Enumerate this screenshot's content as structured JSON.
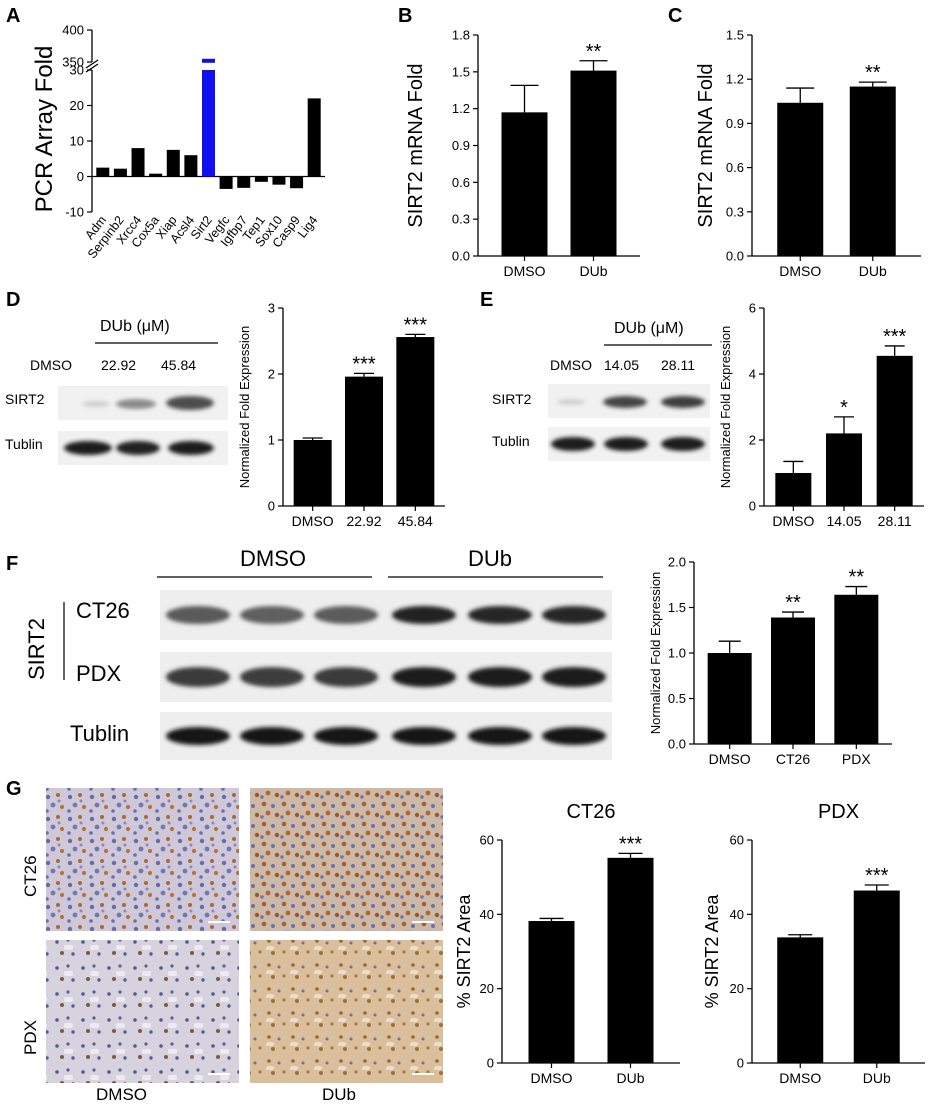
{
  "panels": {
    "a": "A",
    "b": "B",
    "c": "C",
    "d": "D",
    "e": "E",
    "f": "F",
    "g": "G"
  },
  "chart_data": [
    {
      "id": "A",
      "type": "bar",
      "ylabel": "PCR Array Fold",
      "categories": [
        "Adm",
        "Serpinb2",
        "Xrcc4",
        "Cox5a",
        "Xiap",
        "Acsl4",
        "Sirt2",
        "Vegfc",
        "Igfbp7",
        "Tep1",
        "Sox10",
        "Casp9",
        "Lig4"
      ],
      "values": [
        2.5,
        2.2,
        8.0,
        0.8,
        7.5,
        6.0,
        355,
        -3.5,
        -3.2,
        -1.5,
        -2.3,
        -3.3,
        22
      ],
      "highlight": "Sirt2",
      "highlight_color": "#1010ee",
      "axis_break": [
        30,
        350
      ],
      "yticks": [
        -10,
        0,
        10,
        20,
        30,
        350,
        400
      ],
      "ylim": [
        -10,
        400
      ]
    },
    {
      "id": "B",
      "type": "bar",
      "ylabel": "SIRT2 mRNA Fold",
      "categories": [
        "DMSO",
        "DUb"
      ],
      "values": [
        1.17,
        1.51
      ],
      "errors": [
        0.22,
        0.08
      ],
      "annotations": [
        "",
        "**"
      ],
      "yticks": [
        "0.0",
        "0.3",
        "0.6",
        "0.9",
        "1.2",
        "1.5",
        "1.8"
      ],
      "ylim": [
        0,
        1.8
      ]
    },
    {
      "id": "C",
      "type": "bar",
      "ylabel": "SIRT2 mRNA Fold",
      "categories": [
        "DMSO",
        "DUb"
      ],
      "values": [
        1.04,
        1.15
      ],
      "errors": [
        0.1,
        0.03
      ],
      "annotations": [
        "",
        "**"
      ],
      "yticks": [
        "0.0",
        "0.3",
        "0.6",
        "0.9",
        "1.2",
        "1.5"
      ],
      "ylim": [
        0,
        1.5
      ]
    },
    {
      "id": "D",
      "type": "bar",
      "ylabel": "Normalized Fold Expression",
      "categories": [
        "DMSO",
        "22.92",
        "45.84"
      ],
      "values": [
        1.0,
        1.96,
        2.56
      ],
      "errors": [
        0.03,
        0.05,
        0.04
      ],
      "annotations": [
        "",
        "***",
        "***"
      ],
      "yticks": [
        "0",
        "1",
        "2",
        "3"
      ],
      "ylim": [
        0,
        3
      ]
    },
    {
      "id": "E",
      "type": "bar",
      "ylabel": "Normalized Fold Expression",
      "categories": [
        "DMSO",
        "14.05",
        "28.11"
      ],
      "values": [
        1.0,
        2.2,
        4.55
      ],
      "errors": [
        0.35,
        0.5,
        0.3
      ],
      "annotations": [
        "",
        "*",
        "***"
      ],
      "yticks": [
        "0",
        "2",
        "4",
        "6"
      ],
      "ylim": [
        0,
        6
      ]
    },
    {
      "id": "F",
      "type": "bar",
      "ylabel": "Normalized Fold Expression",
      "categories": [
        "DMSO",
        "CT26",
        "PDX"
      ],
      "values": [
        1.0,
        1.39,
        1.64
      ],
      "errors": [
        0.13,
        0.06,
        0.09
      ],
      "annotations": [
        "",
        "**",
        "**"
      ],
      "yticks": [
        "0.0",
        "0.5",
        "1.0",
        "1.5",
        "2.0"
      ],
      "ylim": [
        0,
        2
      ]
    },
    {
      "id": "G1",
      "type": "bar",
      "title": "CT26",
      "ylabel": "% SIRT2 Area",
      "categories": [
        "DMSO",
        "DUb"
      ],
      "values": [
        38.2,
        55.2
      ],
      "errors": [
        0.7,
        1.2
      ],
      "annotations": [
        "",
        "***"
      ],
      "yticks": [
        "0",
        "20",
        "40",
        "60"
      ],
      "ylim": [
        0,
        60
      ]
    },
    {
      "id": "G2",
      "type": "bar",
      "title": "PDX",
      "ylabel": "% SIRT2 Area",
      "categories": [
        "DMSO",
        "DUb"
      ],
      "values": [
        33.8,
        46.4
      ],
      "errors": [
        0.7,
        1.5
      ],
      "annotations": [
        "",
        "***"
      ],
      "yticks": [
        "0",
        "20",
        "40",
        "60"
      ],
      "ylim": [
        0,
        60
      ]
    }
  ],
  "blots": {
    "d": {
      "header": "DUb (μM)",
      "lanes": [
        "DMSO",
        "22.92",
        "45.84"
      ],
      "rows": [
        "SIRT2",
        "Tublin"
      ]
    },
    "e": {
      "header": "DUb (μM)",
      "lanes": [
        "DMSO",
        "14.05",
        "28.11"
      ],
      "rows": [
        "SIRT2",
        "Tublin"
      ]
    },
    "f": {
      "groups": [
        "DMSO",
        "DUb"
      ],
      "bracket": "SIRT2",
      "rows": [
        "CT26",
        "PDX",
        "Tublin"
      ]
    }
  },
  "ihc": {
    "rows": [
      "CT26",
      "PDX"
    ],
    "cols": [
      "DMSO",
      "DUb"
    ]
  }
}
